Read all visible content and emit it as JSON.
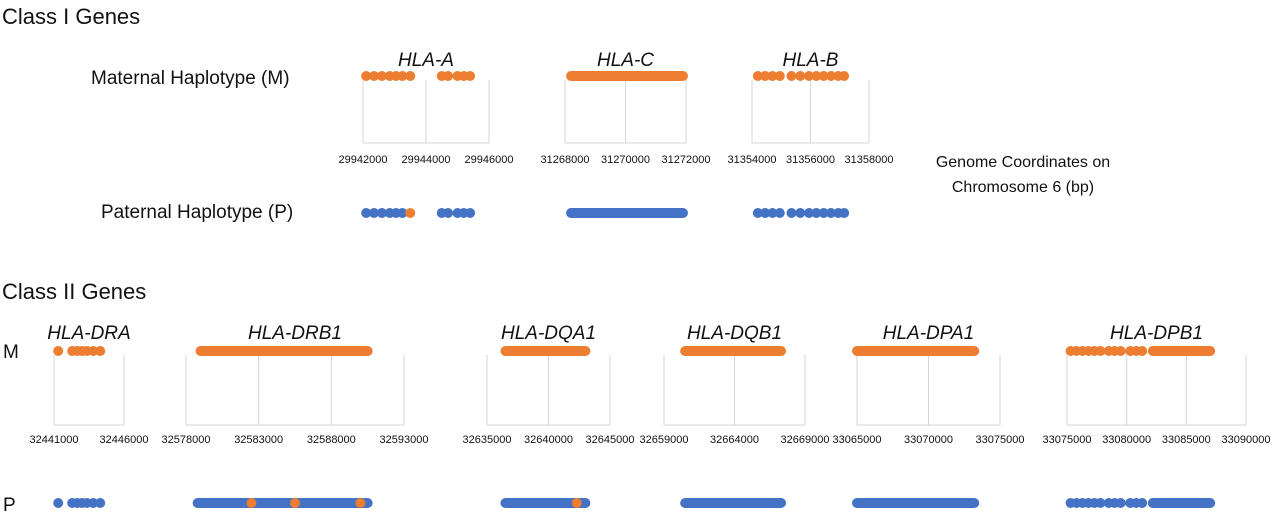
{
  "class1": {
    "title": "Class I Genes",
    "maternal_label": "Maternal Haplotype (M)",
    "paternal_label": "Paternal Haplotype (P)",
    "axis_title_line1": "Genome Coordinates on",
    "axis_title_line2": "Chromosome 6 (bp)"
  },
  "class2": {
    "title": "Class II Genes",
    "maternal_label": "M",
    "paternal_label": "P"
  },
  "colors": {
    "maternal": "#ED7D31",
    "paternal": "#4472C4",
    "grid": "#D6D6D6"
  },
  "chart_data": [
    {
      "type": "scatter",
      "gene": "HLA-A",
      "xlim": [
        29942000,
        29946000
      ],
      "xticks": [
        "29942000",
        "29944000",
        "29946000"
      ],
      "maternal": [
        29942100,
        29942350,
        29942600,
        29942850,
        29943050,
        29943250,
        29943500,
        29944500,
        29944700,
        29945000,
        29945200,
        29945400
      ],
      "paternal": [
        29942100,
        29942350,
        29942600,
        29942850,
        29943050,
        29943250,
        29944500,
        29944700,
        29945000,
        29945200,
        29945400
      ],
      "paternal_variants": [
        29943500
      ]
    },
    {
      "type": "scatter",
      "gene": "HLA-C",
      "xlim": [
        31268000,
        31272000
      ],
      "xticks": [
        "31268000",
        "31270000",
        "31272000"
      ],
      "maternal_range": [
        31268200,
        31271900
      ],
      "paternal_range": [
        31268200,
        31271900
      ]
    },
    {
      "type": "scatter",
      "gene": "HLA-B",
      "xlim": [
        31354000,
        31358000
      ],
      "xticks": [
        "31354000",
        "31356000",
        "31358000"
      ],
      "maternal": [
        31354200,
        31354450,
        31354700,
        31354950,
        31355350,
        31355650,
        31355950,
        31356200,
        31356450,
        31356700,
        31356950,
        31357150
      ],
      "paternal": [
        31354200,
        31354450,
        31354700,
        31354950,
        31355350,
        31355650,
        31355950,
        31356200,
        31356450,
        31356700,
        31356950,
        31357150
      ]
    },
    {
      "type": "scatter",
      "gene": "HLA-DRA",
      "xlim": [
        32441000,
        32446000
      ],
      "xticks": [
        "32441000",
        "32446000"
      ],
      "maternal": [
        32441300,
        32442300,
        32442650,
        32443000,
        32443350,
        32443800,
        32444300
      ],
      "paternal": [
        32441300,
        32442300,
        32442650,
        32443000,
        32443350,
        32443800,
        32444300
      ]
    },
    {
      "type": "scatter",
      "gene": "HLA-DRB1",
      "xlim": [
        32578000,
        32593000
      ],
      "xticks": [
        "32578000",
        "32583000",
        "32588000",
        "32593000"
      ],
      "maternal_range": [
        32579000,
        32590500
      ],
      "maternal_extra": [
        32579100
      ],
      "paternal_range": [
        32578800,
        32590500
      ],
      "paternal_variants": [
        32582500,
        32585500,
        32590000
      ]
    },
    {
      "type": "scatter",
      "gene": "HLA-DQA1",
      "xlim": [
        32635000,
        32645000
      ],
      "xticks": [
        "32635000",
        "32640000",
        "32645000"
      ],
      "maternal_range": [
        32636500,
        32643000
      ],
      "paternal_range": [
        32636500,
        32643000
      ],
      "paternal_variants": [
        32642300
      ]
    },
    {
      "type": "scatter",
      "gene": "HLA-DQB1",
      "xlim": [
        32659000,
        32669000
      ],
      "xticks": [
        "32659000",
        "32664000",
        "32669000"
      ],
      "maternal_range": [
        32660500,
        32667300
      ],
      "paternal_range": [
        32660500,
        32667300
      ]
    },
    {
      "type": "scatter",
      "gene": "HLA-DPA1",
      "xlim": [
        33065000,
        33075000
      ],
      "xticks": [
        "33065000",
        "33070000",
        "33075000"
      ],
      "maternal_range": [
        33065000,
        33073200
      ],
      "paternal_range": [
        33065000,
        33073200
      ]
    },
    {
      "type": "scatter",
      "gene": "HLA-DPB1",
      "xlim": [
        33075000,
        33090000
      ],
      "xticks": [
        "33075000",
        "33080000",
        "33085000",
        "33090000"
      ],
      "maternal": [
        33075300,
        33075800,
        33076300,
        33076800,
        33077300,
        33077800,
        33078500,
        33079000,
        33079500,
        33080300,
        33080800,
        33081300,
        33082200
      ],
      "maternal_range": [
        33082200,
        33087000
      ],
      "paternal": [
        33075300,
        33075800,
        33076300,
        33076800,
        33077300,
        33077800,
        33078500,
        33079000,
        33079500,
        33080300,
        33080800,
        33081300,
        33082200
      ],
      "paternal_range": [
        33082200,
        33087000
      ]
    }
  ]
}
